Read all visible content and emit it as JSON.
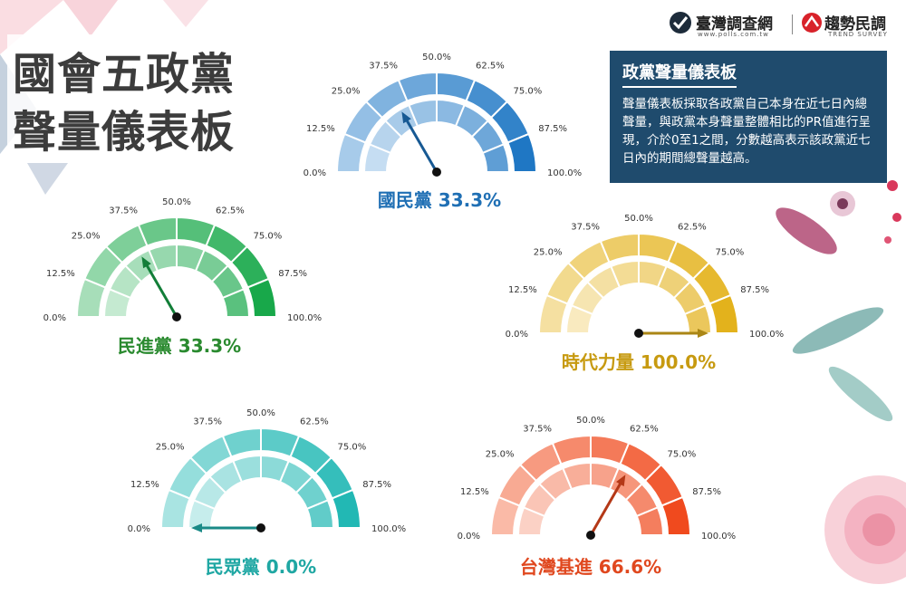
{
  "page": {
    "title_line1": "國會五政黨",
    "title_line2": "聲量儀表板"
  },
  "logos": {
    "logo1": "臺灣調查網",
    "logo1_url": "www.polls.com.tw",
    "logo2": "趨勢民調",
    "logo2_sub": "TREND SURVEY"
  },
  "info": {
    "title": "政黨聲量儀表板",
    "body": "聲量儀表板採取各政黨自己本身在近七日內總聲量，與政黨本身聲量整體相比的PR值進行呈現，介於0至1之間，分數越高表示該政黨近七日內的期間總聲量越高。"
  },
  "chart_data": {
    "type": "gauge",
    "tick_labels": [
      "0.0%",
      "12.5%",
      "25.0%",
      "37.5%",
      "50.0%",
      "62.5%",
      "75.0%",
      "87.5%",
      "100.0%"
    ],
    "range": [
      0,
      100
    ],
    "gauges": [
      {
        "party": "國民黨",
        "value": 33.3,
        "label": "國民黨 33.3%",
        "color": "#1f77c4",
        "light": "#d6e8f7",
        "text_color": "#1f6fb4"
      },
      {
        "party": "民進黨",
        "value": 33.3,
        "label": "民進黨 33.3%",
        "color": "#18a84a",
        "light": "#d8f1df",
        "text_color": "#2a8a2f"
      },
      {
        "party": "時代力量",
        "value": 100.0,
        "label": "時代力量 100.0%",
        "color": "#e3b21c",
        "light": "#fbf0cf",
        "text_color": "#c79a10"
      },
      {
        "party": "民眾黨",
        "value": 0.0,
        "label": "民眾黨 0.0%",
        "color": "#22b8b4",
        "light": "#d7f3f2",
        "text_color": "#1fa7a3"
      },
      {
        "party": "台灣基進",
        "value": 66.6,
        "label": "台灣基進 66.6%",
        "color": "#f04a1e",
        "light": "#fde0d6",
        "text_color": "#e0481f"
      }
    ]
  }
}
